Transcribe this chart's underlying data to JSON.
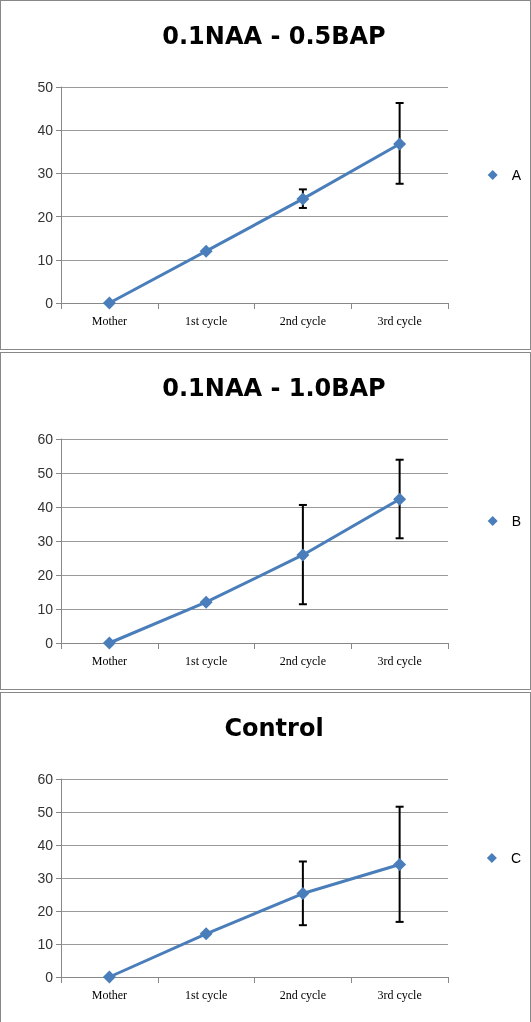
{
  "chart_data": [
    {
      "type": "line",
      "title": "0.1NAA - 0.5BAP",
      "categories": [
        "Mother",
        "1st cycle",
        "2nd cycle",
        "3rd cycle"
      ],
      "series": [
        {
          "name": "A",
          "color": "#4a7ebb",
          "values": [
            0,
            12,
            24.1,
            36.8
          ],
          "errors": [
            null,
            null,
            [
              22,
              26.3
            ],
            [
              27.6,
              46.3
            ]
          ]
        }
      ],
      "ylim": [
        0,
        50
      ],
      "yticks": [
        0,
        10,
        20,
        30,
        40,
        50
      ],
      "grid": "y",
      "legend": "right",
      "marker": "diamond",
      "line_style": "solid"
    },
    {
      "type": "line",
      "title": "0.1NAA - 1.0BAP",
      "categories": [
        "Mother",
        "1st cycle",
        "2nd cycle",
        "3rd cycle"
      ],
      "series": [
        {
          "name": "B",
          "color": "#4a7ebb",
          "values": [
            0,
            12,
            25.9,
            42.3
          ],
          "errors": [
            null,
            null,
            [
              11.4,
              40.6
            ],
            [
              30.8,
              53.9
            ]
          ]
        }
      ],
      "ylim": [
        0,
        60
      ],
      "yticks": [
        0,
        10,
        20,
        30,
        40,
        50,
        60
      ],
      "grid": "y",
      "legend": "right",
      "marker": "diamond",
      "line_style": "solid"
    },
    {
      "type": "line",
      "title": "Control",
      "categories": [
        "Mother",
        "1st cycle",
        "2nd cycle",
        "3rd cycle"
      ],
      "series": [
        {
          "name": "C",
          "color": "#4a7ebb",
          "values": [
            0,
            13.1,
            25.3,
            34.1
          ],
          "errors": [
            null,
            null,
            [
              15.7,
              35
            ],
            [
              16.7,
              51.6
            ]
          ]
        }
      ],
      "ylim": [
        0,
        60
      ],
      "yticks": [
        0,
        10,
        20,
        30,
        40,
        50,
        60
      ],
      "grid": "y",
      "legend": "right",
      "marker": "diamond",
      "line_style": "solid"
    }
  ]
}
